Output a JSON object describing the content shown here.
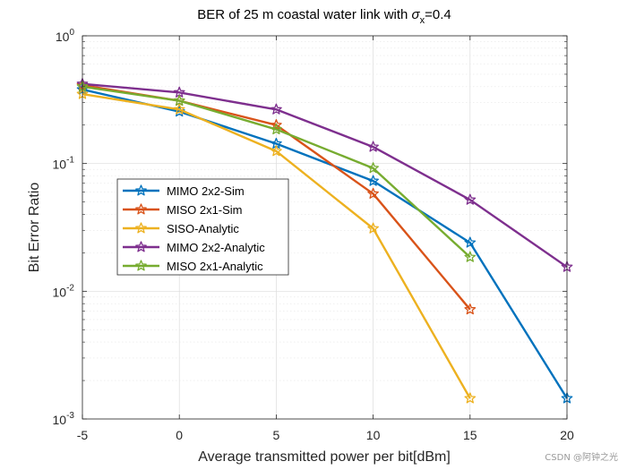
{
  "chart_data": {
    "type": "line",
    "title_prefix": "BER of 25 m coastal water link with ",
    "title_symbol": "σ",
    "title_subscript": "x",
    "title_suffix": "=0.4",
    "xlabel": "Average transmitted power per bit[dBm]",
    "ylabel": "Bit Error Ratio",
    "x_scale": "linear",
    "y_scale": "log",
    "xlim": [
      -5,
      20
    ],
    "ylim": [
      0.001,
      1
    ],
    "x_ticks": [
      -5,
      0,
      5,
      10,
      15,
      20
    ],
    "y_ticks": [
      {
        "value": 0.001,
        "base": "10",
        "exp": "-3"
      },
      {
        "value": 0.01,
        "base": "10",
        "exp": "-2"
      },
      {
        "value": 0.1,
        "base": "10",
        "exp": "-1"
      },
      {
        "value": 1,
        "base": "10",
        "exp": "0"
      }
    ],
    "grid": true,
    "minor_grid": true,
    "legend_position": "center-left",
    "series": [
      {
        "name": "MIMO 2x2-Sim",
        "color": "#0072BD",
        "x": [
          -5,
          0,
          5,
          10,
          15,
          20
        ],
        "values": [
          0.38,
          0.255,
          0.143,
          0.073,
          0.024,
          0.00145
        ]
      },
      {
        "name": "MISO 2x1-Sim",
        "color": "#D95319",
        "x": [
          -5,
          0,
          5,
          10,
          15
        ],
        "values": [
          0.41,
          0.31,
          0.2,
          0.058,
          0.0072
        ]
      },
      {
        "name": "SISO-Analytic",
        "color": "#EDB120",
        "x": [
          -5,
          0,
          5,
          10,
          15
        ],
        "values": [
          0.35,
          0.265,
          0.125,
          0.031,
          0.00145
        ]
      },
      {
        "name": "MIMO 2x2-Analytic",
        "color": "#7E2F8E",
        "x": [
          -5,
          0,
          5,
          10,
          15,
          20
        ],
        "values": [
          0.42,
          0.36,
          0.265,
          0.135,
          0.052,
          0.0155
        ]
      },
      {
        "name": "MISO 2x1-Analytic",
        "color": "#77AC30",
        "x": [
          -5,
          0,
          5,
          10,
          15
        ],
        "values": [
          0.4,
          0.31,
          0.185,
          0.092,
          0.0185
        ]
      }
    ]
  },
  "watermark": "CSDN @阿钟之光"
}
